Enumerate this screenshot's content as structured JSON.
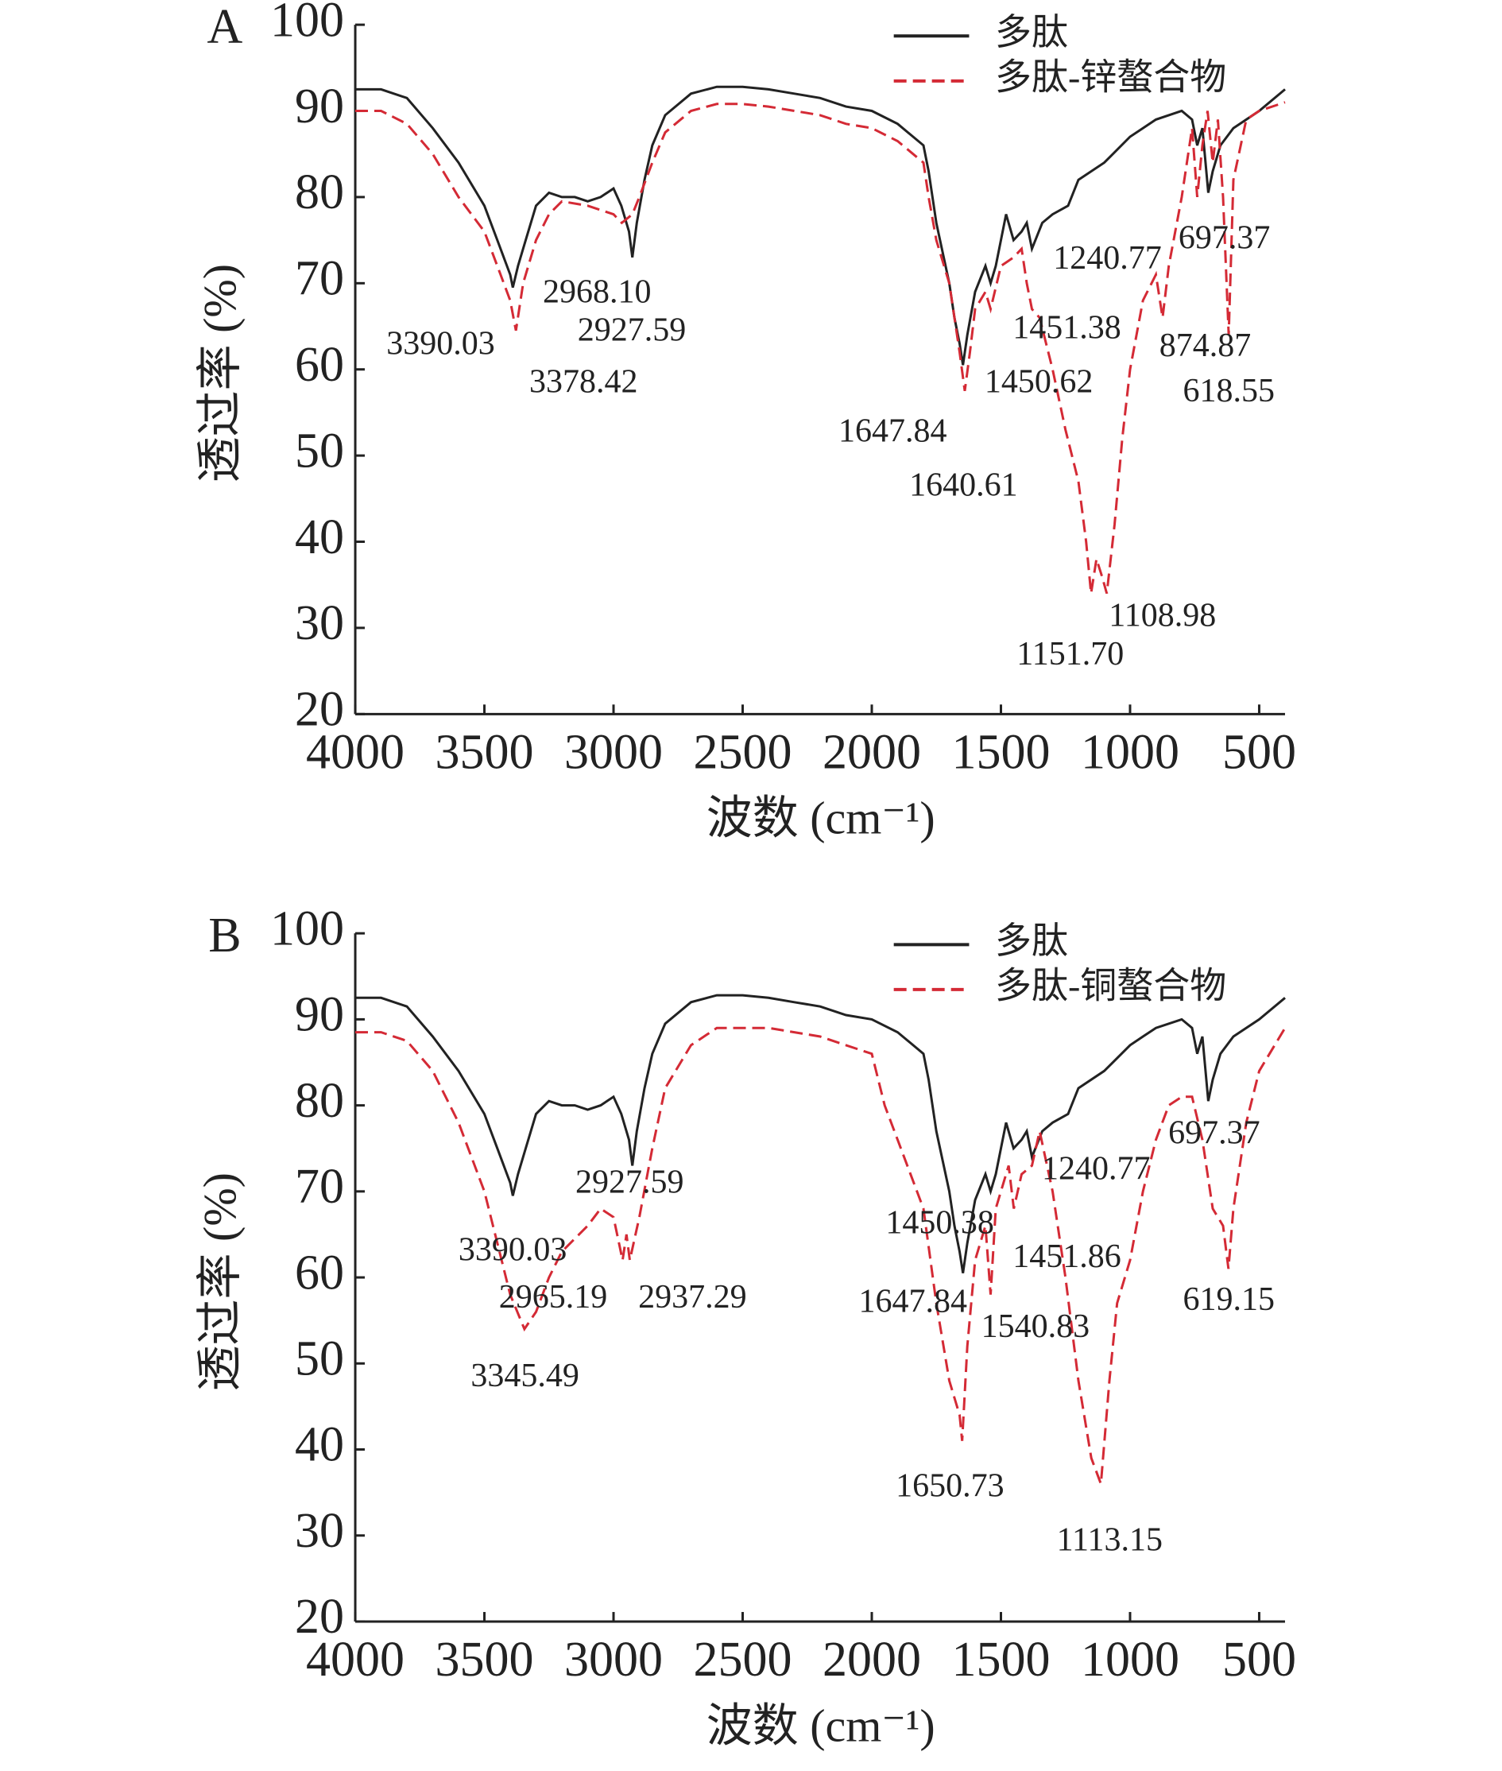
{
  "chart_data": [
    {
      "type": "line",
      "panel": "A",
      "y_label": "透过率 (%)",
      "x_label": "波数 (cm⁻¹)",
      "xlim": [
        4000,
        400
      ],
      "ylim": [
        20,
        100
      ],
      "xticks": [
        4000,
        3500,
        3000,
        2500,
        2000,
        1500,
        1000,
        500
      ],
      "yticks": [
        20,
        30,
        40,
        50,
        60,
        70,
        80,
        90,
        100
      ],
      "series": [
        {
          "name": "多肽",
          "color": "#222222",
          "style": "solid",
          "x": [
            4000,
            3900,
            3800,
            3700,
            3600,
            3500,
            3450,
            3400,
            3390,
            3370,
            3340,
            3300,
            3250,
            3200,
            3150,
            3100,
            3050,
            3000,
            2970,
            2940,
            2927,
            2910,
            2880,
            2850,
            2800,
            2700,
            2600,
            2500,
            2400,
            2300,
            2200,
            2100,
            2000,
            1900,
            1800,
            1780,
            1750,
            1700,
            1680,
            1660,
            1647,
            1630,
            1600,
            1560,
            1540,
            1520,
            1500,
            1480,
            1451,
            1420,
            1400,
            1380,
            1340,
            1300,
            1240,
            1200,
            1100,
            1000,
            950,
            900,
            800,
            760,
            740,
            720,
            697,
            680,
            650,
            600,
            500,
            400
          ],
          "values": [
            92.5,
            92.5,
            91.5,
            88,
            84,
            79,
            75,
            71,
            69.5,
            72,
            75,
            79,
            80.5,
            80,
            80,
            79.5,
            80,
            81,
            79,
            76,
            73,
            77,
            82,
            86,
            89.5,
            92,
            92.8,
            92.8,
            92.5,
            92,
            91.5,
            90.5,
            90,
            88.5,
            86,
            83,
            77,
            70,
            66,
            63,
            60.5,
            64,
            69,
            72,
            70,
            72,
            75,
            78,
            75,
            76,
            77,
            74,
            77,
            78,
            79,
            82,
            84,
            87,
            88,
            89,
            90,
            89,
            86,
            88,
            80.5,
            83,
            86,
            88,
            90,
            92.5
          ]
        },
        {
          "name": "多肽-锌螯合物",
          "color": "#d42a35",
          "style": "dashed",
          "x": [
            4000,
            3900,
            3800,
            3700,
            3600,
            3500,
            3450,
            3400,
            3378,
            3350,
            3300,
            3250,
            3200,
            3100,
            3000,
            2968,
            2927,
            2900,
            2850,
            2800,
            2700,
            2600,
            2500,
            2400,
            2300,
            2200,
            2100,
            2000,
            1900,
            1800,
            1780,
            1750,
            1700,
            1680,
            1660,
            1640,
            1620,
            1600,
            1560,
            1540,
            1500,
            1451,
            1420,
            1400,
            1380,
            1350,
            1300,
            1250,
            1200,
            1170,
            1151,
            1130,
            1109,
            1090,
            1060,
            1030,
            1000,
            950,
            900,
            874,
            850,
            800,
            760,
            740,
            720,
            700,
            680,
            660,
            640,
            618,
            600,
            550,
            500,
            400
          ],
          "values": [
            90,
            90,
            88.5,
            85,
            80,
            76,
            72,
            68,
            64.5,
            70,
            75,
            78,
            79.5,
            79,
            78,
            77,
            78,
            80,
            84,
            87.5,
            90,
            90.8,
            90.8,
            90.5,
            90,
            89.5,
            88.5,
            88,
            86.5,
            84,
            80,
            75,
            70,
            66,
            62,
            57.5,
            62,
            67,
            69,
            67,
            72,
            73,
            74,
            70,
            67,
            66,
            60,
            53,
            47,
            40,
            34,
            38,
            36,
            34,
            42,
            52,
            60,
            68,
            71,
            66,
            72,
            80,
            88,
            80,
            86,
            90,
            84,
            89,
            80,
            64,
            82,
            89,
            90,
            91
          ]
        }
      ],
      "annotations": [
        "3390.03",
        "3378.42",
        "2968.10",
        "2927.59",
        "1240.77",
        "697.37",
        "1451.38",
        "874.87",
        "1450.62",
        "618.55",
        "1647.84",
        "1640.61",
        "1108.98",
        "1151.70"
      ]
    },
    {
      "type": "line",
      "panel": "B",
      "y_label": "透过率 (%)",
      "x_label": "波数 (cm⁻¹)",
      "xlim": [
        4000,
        400
      ],
      "ylim": [
        20,
        100
      ],
      "xticks": [
        4000,
        3500,
        3000,
        2500,
        2000,
        1500,
        1000,
        500
      ],
      "yticks": [
        20,
        30,
        40,
        50,
        60,
        70,
        80,
        90,
        100
      ],
      "series": [
        {
          "name": "多肽",
          "color": "#222222",
          "style": "solid",
          "x": [
            4000,
            3900,
            3800,
            3700,
            3600,
            3500,
            3450,
            3400,
            3390,
            3370,
            3340,
            3300,
            3250,
            3200,
            3150,
            3100,
            3050,
            3000,
            2970,
            2940,
            2927,
            2910,
            2880,
            2850,
            2800,
            2700,
            2600,
            2500,
            2400,
            2300,
            2200,
            2100,
            2000,
            1900,
            1800,
            1780,
            1750,
            1700,
            1680,
            1660,
            1647,
            1630,
            1600,
            1560,
            1540,
            1520,
            1500,
            1480,
            1451,
            1420,
            1400,
            1380,
            1340,
            1300,
            1240,
            1200,
            1100,
            1000,
            950,
            900,
            800,
            760,
            740,
            720,
            697,
            680,
            650,
            600,
            500,
            400
          ],
          "values": [
            92.5,
            92.5,
            91.5,
            88,
            84,
            79,
            75,
            71,
            69.5,
            72,
            75,
            79,
            80.5,
            80,
            80,
            79.5,
            80,
            81,
            79,
            76,
            73,
            77,
            82,
            86,
            89.5,
            92,
            92.8,
            92.8,
            92.5,
            92,
            91.5,
            90.5,
            90,
            88.5,
            86,
            83,
            77,
            70,
            66,
            63,
            60.5,
            64,
            69,
            72,
            70,
            72,
            75,
            78,
            75,
            76,
            77,
            74,
            77,
            78,
            79,
            82,
            84,
            87,
            88,
            89,
            90,
            89,
            86,
            88,
            80.5,
            83,
            86,
            88,
            90,
            92.5
          ]
        },
        {
          "name": "多肽-铜螯合物",
          "color": "#d42a35",
          "style": "dashed",
          "x": [
            4000,
            3900,
            3800,
            3700,
            3600,
            3500,
            3450,
            3400,
            3345,
            3300,
            3250,
            3200,
            3100,
            3050,
            3000,
            2965,
            2950,
            2937,
            2900,
            2850,
            2800,
            2700,
            2600,
            2500,
            2400,
            2300,
            2200,
            2100,
            2000,
            1950,
            1900,
            1800,
            1750,
            1700,
            1660,
            1650,
            1630,
            1600,
            1560,
            1540,
            1520,
            1500,
            1470,
            1450,
            1420,
            1380,
            1350,
            1300,
            1250,
            1200,
            1150,
            1113,
            1080,
            1050,
            1000,
            950,
            900,
            850,
            800,
            760,
            720,
            680,
            640,
            619,
            600,
            550,
            500,
            400
          ],
          "values": [
            88.5,
            88.5,
            87.5,
            84,
            78,
            70,
            64,
            58,
            54,
            56,
            60,
            63,
            66,
            68,
            67,
            62,
            65,
            62,
            67,
            75,
            82,
            87,
            89,
            89,
            89,
            88.5,
            88,
            87,
            86,
            80,
            76,
            68,
            57,
            48,
            44,
            41,
            52,
            62,
            66,
            58,
            68,
            70,
            73,
            68,
            72,
            73,
            77,
            70,
            60,
            48,
            39,
            36,
            48,
            57,
            62,
            70,
            76,
            80,
            81,
            81,
            76,
            68,
            66,
            61,
            68,
            78,
            84,
            89
          ]
        }
      ],
      "annotations": [
        "2927.59",
        "1240.77",
        "697.37",
        "1450.38",
        "3390.03",
        "1451.86",
        "2965.19",
        "2937.29",
        "1647.84",
        "1540.83",
        "619.15",
        "3345.49",
        "1650.73",
        "1113.15"
      ]
    }
  ]
}
